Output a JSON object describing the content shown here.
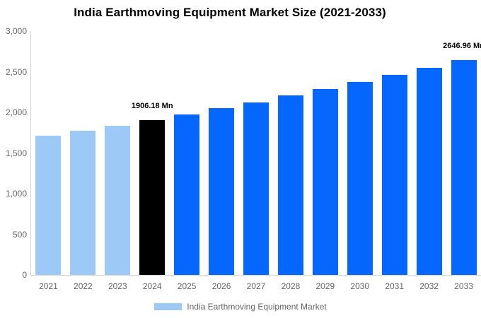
{
  "chart_data": {
    "type": "bar",
    "title": "India Earthmoving Equipment Market Size (2021-2033)",
    "unit": "Mn",
    "categories": [
      "2021",
      "2022",
      "2023",
      "2024",
      "2025",
      "2026",
      "2027",
      "2028",
      "2029",
      "2030",
      "2031",
      "2032",
      "2033"
    ],
    "series": [
      {
        "name": "India Earthmoving Equipment Market",
        "values": [
          1709,
          1772,
          1838,
          1906.18,
          1977,
          2050,
          2126,
          2205,
          2287,
          2372,
          2460,
          2551,
          2646.96
        ]
      }
    ],
    "point_colors": [
      "#9dc9f7",
      "#9dc9f7",
      "#9dc9f7",
      "#000000",
      "#0667fe",
      "#0667fe",
      "#0667fe",
      "#0667fe",
      "#0667fe",
      "#0667fe",
      "#0667fe",
      "#0667fe",
      "#0667fe"
    ],
    "data_labels": [
      {
        "category": "2024",
        "text": "1906.18 Mn"
      },
      {
        "category": "2033",
        "text": "2646.96 Mn"
      }
    ],
    "ylim": [
      0,
      3000
    ],
    "ytick_step": 500,
    "ytick_labels": [
      "0",
      "500",
      "1,000",
      "1,500",
      "2,000",
      "2,500",
      "3,000"
    ],
    "grid": false,
    "legend_position": "bottom-center"
  },
  "legend": {
    "label": "India Earthmoving Equipment Market",
    "swatch_color": "#9dc9f7"
  },
  "colors": {
    "historical_bar": "#9dc9f7",
    "base_year_bar": "#000000",
    "forecast_bar": "#0667fe",
    "axis_line": "#d4d4d4",
    "tick_text": "#666666",
    "title_text": "#000000",
    "data_label_text": "#000000"
  }
}
